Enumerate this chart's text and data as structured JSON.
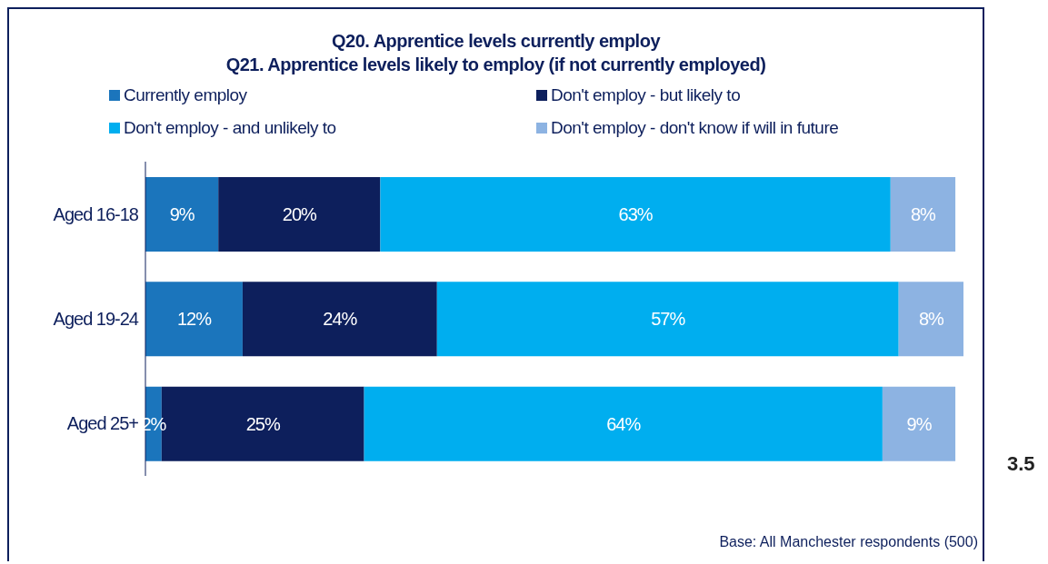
{
  "chart_data": {
    "type": "bar",
    "orientation": "horizontal",
    "stacked": true,
    "title": "Q20. Apprentice levels currently employ",
    "subtitle": "Q21. Apprentice levels likely to employ (if not currently employed)",
    "categories": [
      "Aged 16-18",
      "Aged 19-24",
      "Aged 25+"
    ],
    "series": [
      {
        "name": "Currently employ",
        "color": "#1b75bc",
        "values": [
          9,
          12,
          2
        ],
        "value_labels": [
          "9%",
          "12%",
          "2%"
        ]
      },
      {
        "name": "Don't employ - but likely to",
        "color": "#0d1f5c",
        "values": [
          20,
          24,
          25
        ],
        "value_labels": [
          "20%",
          "24%",
          "25%"
        ]
      },
      {
        "name": "Don't employ - and unlikely to",
        "color": "#00aeef",
        "values": [
          63,
          57,
          64
        ],
        "value_labels": [
          "63%",
          "57%",
          "64%"
        ]
      },
      {
        "name": "Don't employ - don't know if will in future",
        "color": "#8db3e2",
        "values": [
          8,
          8,
          9
        ],
        "value_labels": [
          "8%",
          "8%",
          "9%"
        ]
      }
    ],
    "legend": "top",
    "annotations": [
      "Base: All Manchester respondents (500)",
      "3.5"
    ]
  }
}
